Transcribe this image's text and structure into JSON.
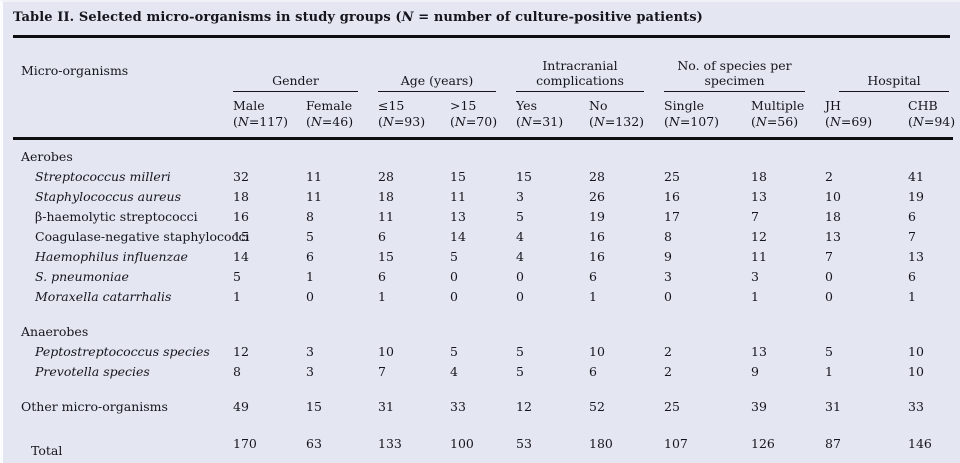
{
  "colors": {
    "background": "#e4e7f1",
    "rule": "#0d0d12",
    "text": "#15151d"
  },
  "title": {
    "pre": "Table II. Selected micro-organisms in study groups (",
    "n": "N",
    "post": " = number of culture-positive patients)"
  },
  "table": {
    "label_col_header": "Micro-organisms",
    "n_open": "(",
    "n_char": "N",
    "groups": [
      {
        "label": "Gender",
        "lines": [
          "Gender"
        ],
        "cols": [
          {
            "label": "Male",
            "n": "=117)"
          },
          {
            "label": "Female",
            "n": "=46)"
          }
        ]
      },
      {
        "label": "Age (years)",
        "lines": [
          "Age (years)"
        ],
        "cols": [
          {
            "label": "≤15",
            "n": "=93)"
          },
          {
            "label": ">15",
            "n": "=70)"
          }
        ]
      },
      {
        "label": "Intracranial complications",
        "lines": [
          "Intracranial",
          "complications"
        ],
        "cols": [
          {
            "label": "Yes",
            "n": "=31)"
          },
          {
            "label": "No",
            "n": "=132)"
          }
        ]
      },
      {
        "label": "No. of species per specimen",
        "lines": [
          "No. of species per",
          "specimen"
        ],
        "cols": [
          {
            "label": "Single",
            "n": "=107)"
          },
          {
            "label": "Multiple",
            "n": "=56)"
          }
        ]
      },
      {
        "label": "Hospital",
        "lines": [
          "Hospital"
        ],
        "cols": [
          {
            "label": "JH",
            "n": "=69)"
          },
          {
            "label": "CHB",
            "n": "=94)"
          }
        ]
      }
    ],
    "rows": [
      {
        "type": "group",
        "label": "Aerobes"
      },
      {
        "type": "species",
        "italic": true,
        "label": "Streptococcus milleri",
        "values": [
          "32",
          "11",
          "28",
          "15",
          "15",
          "28",
          "25",
          "18",
          "2",
          "41"
        ]
      },
      {
        "type": "species",
        "italic": true,
        "label": "Staphylococcus aureus",
        "values": [
          "18",
          "11",
          "18",
          "11",
          "3",
          "26",
          "16",
          "13",
          "10",
          "19"
        ]
      },
      {
        "type": "species",
        "italic": false,
        "label": "β-haemolytic streptococci",
        "values": [
          "16",
          "8",
          "11",
          "13",
          "5",
          "19",
          "17",
          "7",
          "18",
          "6"
        ]
      },
      {
        "type": "species",
        "italic": false,
        "label": "Coagulase-negative staphylococci",
        "values": [
          "15",
          "5",
          "6",
          "14",
          "4",
          "16",
          "8",
          "12",
          "13",
          "7"
        ]
      },
      {
        "type": "species",
        "italic": true,
        "label": "Haemophilus influenzae",
        "values": [
          "14",
          "6",
          "15",
          "5",
          "4",
          "16",
          "9",
          "11",
          "7",
          "13"
        ]
      },
      {
        "type": "species",
        "italic": true,
        "label": "S. pneumoniae",
        "values": [
          "5",
          "1",
          "6",
          "0",
          "0",
          "6",
          "3",
          "3",
          "0",
          "6"
        ]
      },
      {
        "type": "species",
        "italic": true,
        "label": "Moraxella catarrhalis",
        "values": [
          "1",
          "0",
          "1",
          "0",
          "0",
          "1",
          "0",
          "1",
          "0",
          "1"
        ]
      },
      {
        "type": "spacer"
      },
      {
        "type": "group",
        "label": "Anaerobes"
      },
      {
        "type": "species",
        "italic": true,
        "label": "Peptostreptococcus species",
        "values": [
          "12",
          "3",
          "10",
          "5",
          "5",
          "10",
          "2",
          "13",
          "5",
          "10"
        ]
      },
      {
        "type": "species",
        "italic": true,
        "label": "Prevotella species",
        "values": [
          "8",
          "3",
          "7",
          "4",
          "5",
          "6",
          "2",
          "9",
          "1",
          "10"
        ]
      },
      {
        "type": "spacer"
      },
      {
        "type": "plain",
        "label": "Other micro-organisms",
        "values": [
          "49",
          "15",
          "31",
          "33",
          "12",
          "52",
          "25",
          "39",
          "31",
          "33"
        ]
      },
      {
        "type": "total",
        "label": "Total",
        "values": [
          "170",
          "63",
          "133",
          "100",
          "53",
          "180",
          "107",
          "126",
          "87",
          "146"
        ]
      }
    ]
  }
}
